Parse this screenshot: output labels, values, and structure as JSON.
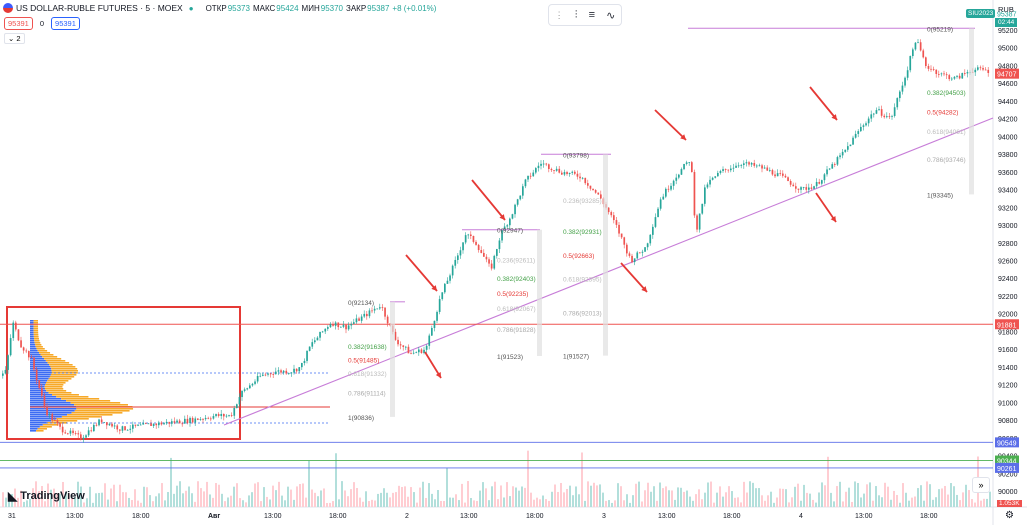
{
  "header": {
    "symbol": "US DOLLAR-RUBLE FUTURES · 5 · MOEX",
    "open_label": "ОТКР",
    "open": "95373",
    "high_label": "МАКС",
    "high": "95424",
    "low_label": "МИН",
    "low": "95370",
    "close_label": "ЗАКР",
    "close": "95387",
    "change": "+8 (+0.01%)",
    "bid": "95391",
    "spread": "0",
    "ask": "95391",
    "indicators_count": "2",
    "currency": "RUB",
    "contract_badge": "SIU2023",
    "countdown": "02:44"
  },
  "toolbar": {
    "icons": [
      "fib-tool-icon",
      "settings-icon",
      "template-icon"
    ]
  },
  "logo_text": "TradingView",
  "colors": {
    "up": "#26a69a",
    "down": "#ef5350",
    "fib": "#c77dd8",
    "blue_line": "#5b6ee8",
    "green_line": "#4caf50",
    "red_box": "#e53935",
    "profile_blue": "#3d6cf2",
    "profile_orange": "#f7a928"
  },
  "chart_data": {
    "type": "line",
    "series_type": "candlestick",
    "title": "US DOLLAR-RUBLE FUTURES · 5 · MOEX",
    "y_ticks": [
      90000,
      90200,
      90400,
      90600,
      90800,
      91000,
      91200,
      91400,
      91600,
      91800,
      92000,
      92200,
      92400,
      92600,
      92800,
      93000,
      93200,
      93400,
      93600,
      93800,
      94000,
      94200,
      94400,
      94600,
      94800,
      95000,
      95200
    ],
    "ylim": [
      89820,
      95380
    ],
    "x_tick_labels": [
      "31",
      "13:00",
      "18:00",
      "Авг",
      "13:00",
      "18:00",
      "2",
      "13:00",
      "18:00",
      "3",
      "13:00",
      "18:00",
      "4",
      "13:00",
      "18:00"
    ],
    "x_labels_highlighted": [
      "Авг"
    ],
    "price_path": [
      [
        0,
        91300
      ],
      [
        5,
        91350
      ],
      [
        12,
        91900
      ],
      [
        20,
        91650
      ],
      [
        30,
        91500
      ],
      [
        45,
        90900
      ],
      [
        60,
        90700
      ],
      [
        80,
        90600
      ],
      [
        100,
        90800
      ],
      [
        120,
        90700
      ],
      [
        150,
        90750
      ],
      [
        190,
        90800
      ],
      [
        215,
        90850
      ],
      [
        230,
        90850
      ],
      [
        240,
        91100
      ],
      [
        260,
        91300
      ],
      [
        275,
        91350
      ],
      [
        290,
        91350
      ],
      [
        300,
        91400
      ],
      [
        310,
        91650
      ],
      [
        330,
        91900
      ],
      [
        345,
        91850
      ],
      [
        360,
        91950
      ],
      [
        380,
        92100
      ],
      [
        395,
        91700
      ],
      [
        410,
        91550
      ],
      [
        425,
        91600
      ],
      [
        440,
        92200
      ],
      [
        455,
        92600
      ],
      [
        465,
        92900
      ],
      [
        475,
        92800
      ],
      [
        490,
        92500
      ],
      [
        500,
        92900
      ],
      [
        510,
        93100
      ],
      [
        525,
        93500
      ],
      [
        540,
        93700
      ],
      [
        560,
        93600
      ],
      [
        580,
        93550
      ],
      [
        600,
        93300
      ],
      [
        615,
        93000
      ],
      [
        630,
        92600
      ],
      [
        645,
        92750
      ],
      [
        660,
        93300
      ],
      [
        675,
        93550
      ],
      [
        690,
        93750
      ],
      [
        695,
        92900
      ],
      [
        705,
        93450
      ],
      [
        720,
        93600
      ],
      [
        740,
        93700
      ],
      [
        760,
        93650
      ],
      [
        780,
        93550
      ],
      [
        800,
        93400
      ],
      [
        815,
        93450
      ],
      [
        830,
        93650
      ],
      [
        845,
        93850
      ],
      [
        860,
        94100
      ],
      [
        875,
        94300
      ],
      [
        890,
        94200
      ],
      [
        905,
        94700
      ],
      [
        915,
        95100
      ],
      [
        925,
        94800
      ],
      [
        940,
        94700
      ],
      [
        955,
        94650
      ],
      [
        970,
        94750
      ],
      [
        985,
        94750
      ],
      [
        995,
        94700
      ]
    ],
    "price_lines": [
      {
        "label": "91881",
        "value": 91881,
        "color": "#ef5350"
      },
      {
        "label": "90549",
        "value": 90549,
        "color": "#5b6ee8"
      },
      {
        "label": "90344",
        "value": 90344,
        "color": "#4caf50"
      },
      {
        "label": "90261",
        "value": 90261,
        "color": "#5b6ee8"
      },
      {
        "label": "94707",
        "value": 94707,
        "color": "#ef5350"
      }
    ],
    "current_price": {
      "label": "95387",
      "value": 95387
    },
    "fib_sets": [
      {
        "levels": [
          {
            "text": "0(92134)",
            "value": 92134,
            "color": "#555"
          },
          {
            "text": "0.382(91638)",
            "value": 91638,
            "color": "#43a047"
          },
          {
            "text": "0.5(91485)",
            "value": 91485,
            "color": "#e53935"
          },
          {
            "text": "0.618(91332)",
            "value": 91332,
            "color": "#bbbbbb"
          },
          {
            "text": "0.786(91114)",
            "value": 91114,
            "color": "#aaaaaa"
          },
          {
            "text": "1(90836)",
            "value": 90836,
            "color": "#555"
          }
        ]
      },
      {
        "levels": [
          {
            "text": "0(92947)",
            "value": 92947,
            "color": "#555"
          },
          {
            "text": "0.236(92611)",
            "value": 92611,
            "color": "#bbbbbb"
          },
          {
            "text": "0.382(92403)",
            "value": 92403,
            "color": "#43a047"
          },
          {
            "text": "0.5(92235)",
            "value": 92235,
            "color": "#e53935"
          },
          {
            "text": "0.618(92067)",
            "value": 92067,
            "color": "#bbbbbb"
          },
          {
            "text": "0.786(91828)",
            "value": 91828,
            "color": "#aaaaaa"
          },
          {
            "text": "1(91523)",
            "value": 91523,
            "color": "#555"
          }
        ]
      },
      {
        "levels": [
          {
            "text": "0(93798)",
            "value": 93798,
            "color": "#555"
          },
          {
            "text": "0.236(93285)",
            "value": 93285,
            "color": "#bbbbbb"
          },
          {
            "text": "0.382(92931)",
            "value": 92931,
            "color": "#43a047"
          },
          {
            "text": "0.5(92663)",
            "value": 92663,
            "color": "#e53935"
          },
          {
            "text": "0.618(92395)",
            "value": 92395,
            "color": "#bbbbbb"
          },
          {
            "text": "0.786(92013)",
            "value": 92013,
            "color": "#aaaaaa"
          },
          {
            "text": "1(91527)",
            "value": 91527,
            "color": "#555"
          }
        ]
      },
      {
        "levels": [
          {
            "text": "0(95219)",
            "value": 95219,
            "color": "#555"
          },
          {
            "text": "0.382(94503)",
            "value": 94503,
            "color": "#43a047"
          },
          {
            "text": "0.5(94282)",
            "value": 94282,
            "color": "#e53935"
          },
          {
            "text": "0.618(94061)",
            "value": 94061,
            "color": "#bbbbbb"
          },
          {
            "text": "0.786(93746)",
            "value": 93746,
            "color": "#aaaaaa"
          },
          {
            "text": "1(93345)",
            "value": 93345,
            "color": "#555"
          }
        ]
      }
    ],
    "volume_label": "1.053K"
  }
}
